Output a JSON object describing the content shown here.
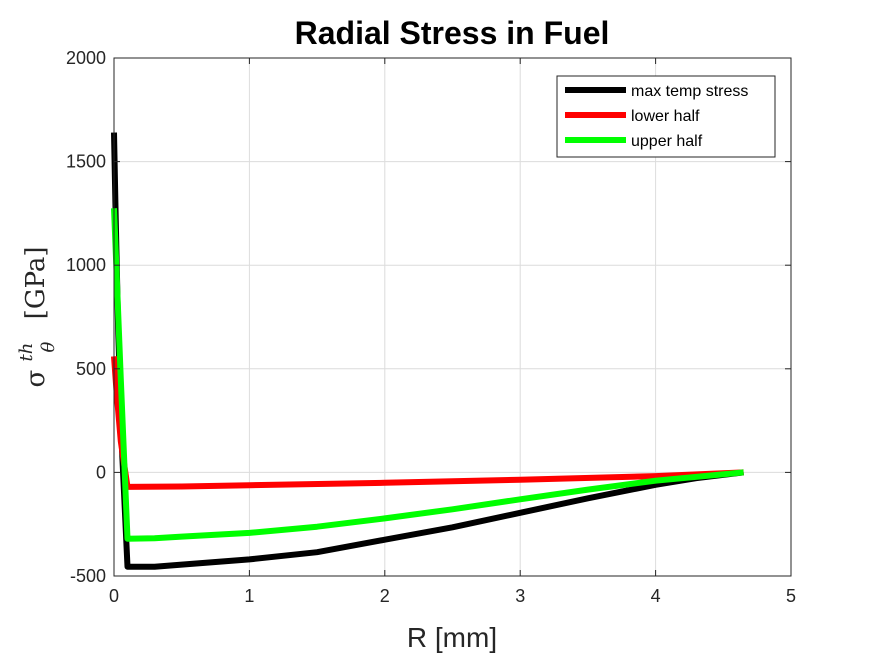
{
  "chart_data": {
    "type": "line",
    "title": "Radial Stress in Fuel",
    "xlabel": "R [mm]",
    "ylabel": {
      "symbol": "σ",
      "superscript": "th",
      "subscript": "θ",
      "unit": "[GPa]"
    },
    "xlim": [
      0,
      5
    ],
    "ylim": [
      -500,
      2000
    ],
    "xticks": [
      0,
      1,
      2,
      3,
      4,
      5
    ],
    "yticks": [
      -500,
      0,
      500,
      1000,
      1500,
      2000
    ],
    "grid": true,
    "legend_position": "top-right",
    "series": [
      {
        "name": "max temp stress",
        "color": "#000000",
        "x": [
          0.0,
          0.01,
          0.03,
          0.06,
          0.1,
          0.3,
          0.5,
          1.0,
          1.5,
          2.0,
          2.5,
          3.0,
          3.5,
          4.0,
          4.3,
          4.65
        ],
        "y": [
          1640,
          1300,
          700,
          100,
          -455,
          -455,
          -445,
          -420,
          -385,
          -325,
          -265,
          -195,
          -125,
          -60,
          -28,
          0
        ]
      },
      {
        "name": "lower half",
        "color": "#ff0000",
        "x": [
          0.0,
          0.02,
          0.05,
          0.1,
          0.5,
          1.0,
          2.0,
          3.0,
          4.0,
          4.65
        ],
        "y": [
          560,
          380,
          150,
          -70,
          -68,
          -62,
          -50,
          -35,
          -18,
          0
        ]
      },
      {
        "name": "upper half",
        "color": "#00ff00",
        "x": [
          0.0,
          0.02,
          0.05,
          0.1,
          0.3,
          0.5,
          1.0,
          1.5,
          2.0,
          2.5,
          3.0,
          3.5,
          4.0,
          4.65
        ],
        "y": [
          1275,
          950,
          450,
          -320,
          -318,
          -310,
          -292,
          -262,
          -222,
          -178,
          -130,
          -83,
          -40,
          0
        ]
      }
    ]
  }
}
